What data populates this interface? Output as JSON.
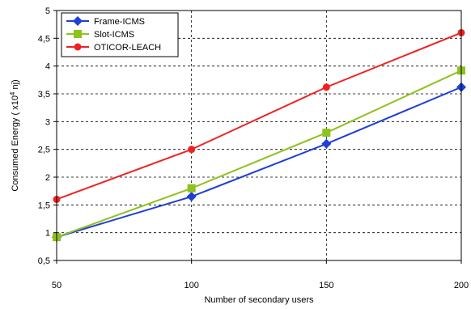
{
  "chart_data": {
    "type": "line",
    "title": "",
    "xlabel": "Number of secondary users",
    "ylabel": {
      "main": "Consumed Energy ( x10",
      "exponent": "4",
      "unit": " nj)"
    },
    "x": [
      50,
      100,
      150,
      200
    ],
    "x_ticks": [
      "50",
      "100",
      "150",
      "200"
    ],
    "xlim": [
      50,
      200
    ],
    "ylim": [
      0.5,
      5
    ],
    "y_ticks": [
      {
        "value": 0.5,
        "label": "0,5"
      },
      {
        "value": 1,
        "label": "1"
      },
      {
        "value": 1.5,
        "label": "1,5"
      },
      {
        "value": 2,
        "label": "2"
      },
      {
        "value": 2.5,
        "label": "2,5"
      },
      {
        "value": 3,
        "label": "3"
      },
      {
        "value": 3.5,
        "label": "3,5"
      },
      {
        "value": 4,
        "label": "4"
      },
      {
        "value": 4.5,
        "label": "4,5"
      },
      {
        "value": 5,
        "label": "5"
      }
    ],
    "grid": "dashed",
    "legend_position": "top-left",
    "series": [
      {
        "name": "Frame-ICMS",
        "values": [
          0.92,
          1.65,
          2.6,
          3.62
        ],
        "color": "#1f3fd6",
        "marker": "diamond"
      },
      {
        "name": "Slot-ICMS",
        "values": [
          0.92,
          1.8,
          2.8,
          3.92
        ],
        "color": "#8ec21d",
        "marker": "square"
      },
      {
        "name": "OTICOR-LEACH",
        "values": [
          1.6,
          2.5,
          3.62,
          4.6
        ],
        "color": "#ee2222",
        "marker": "circle"
      }
    ]
  }
}
